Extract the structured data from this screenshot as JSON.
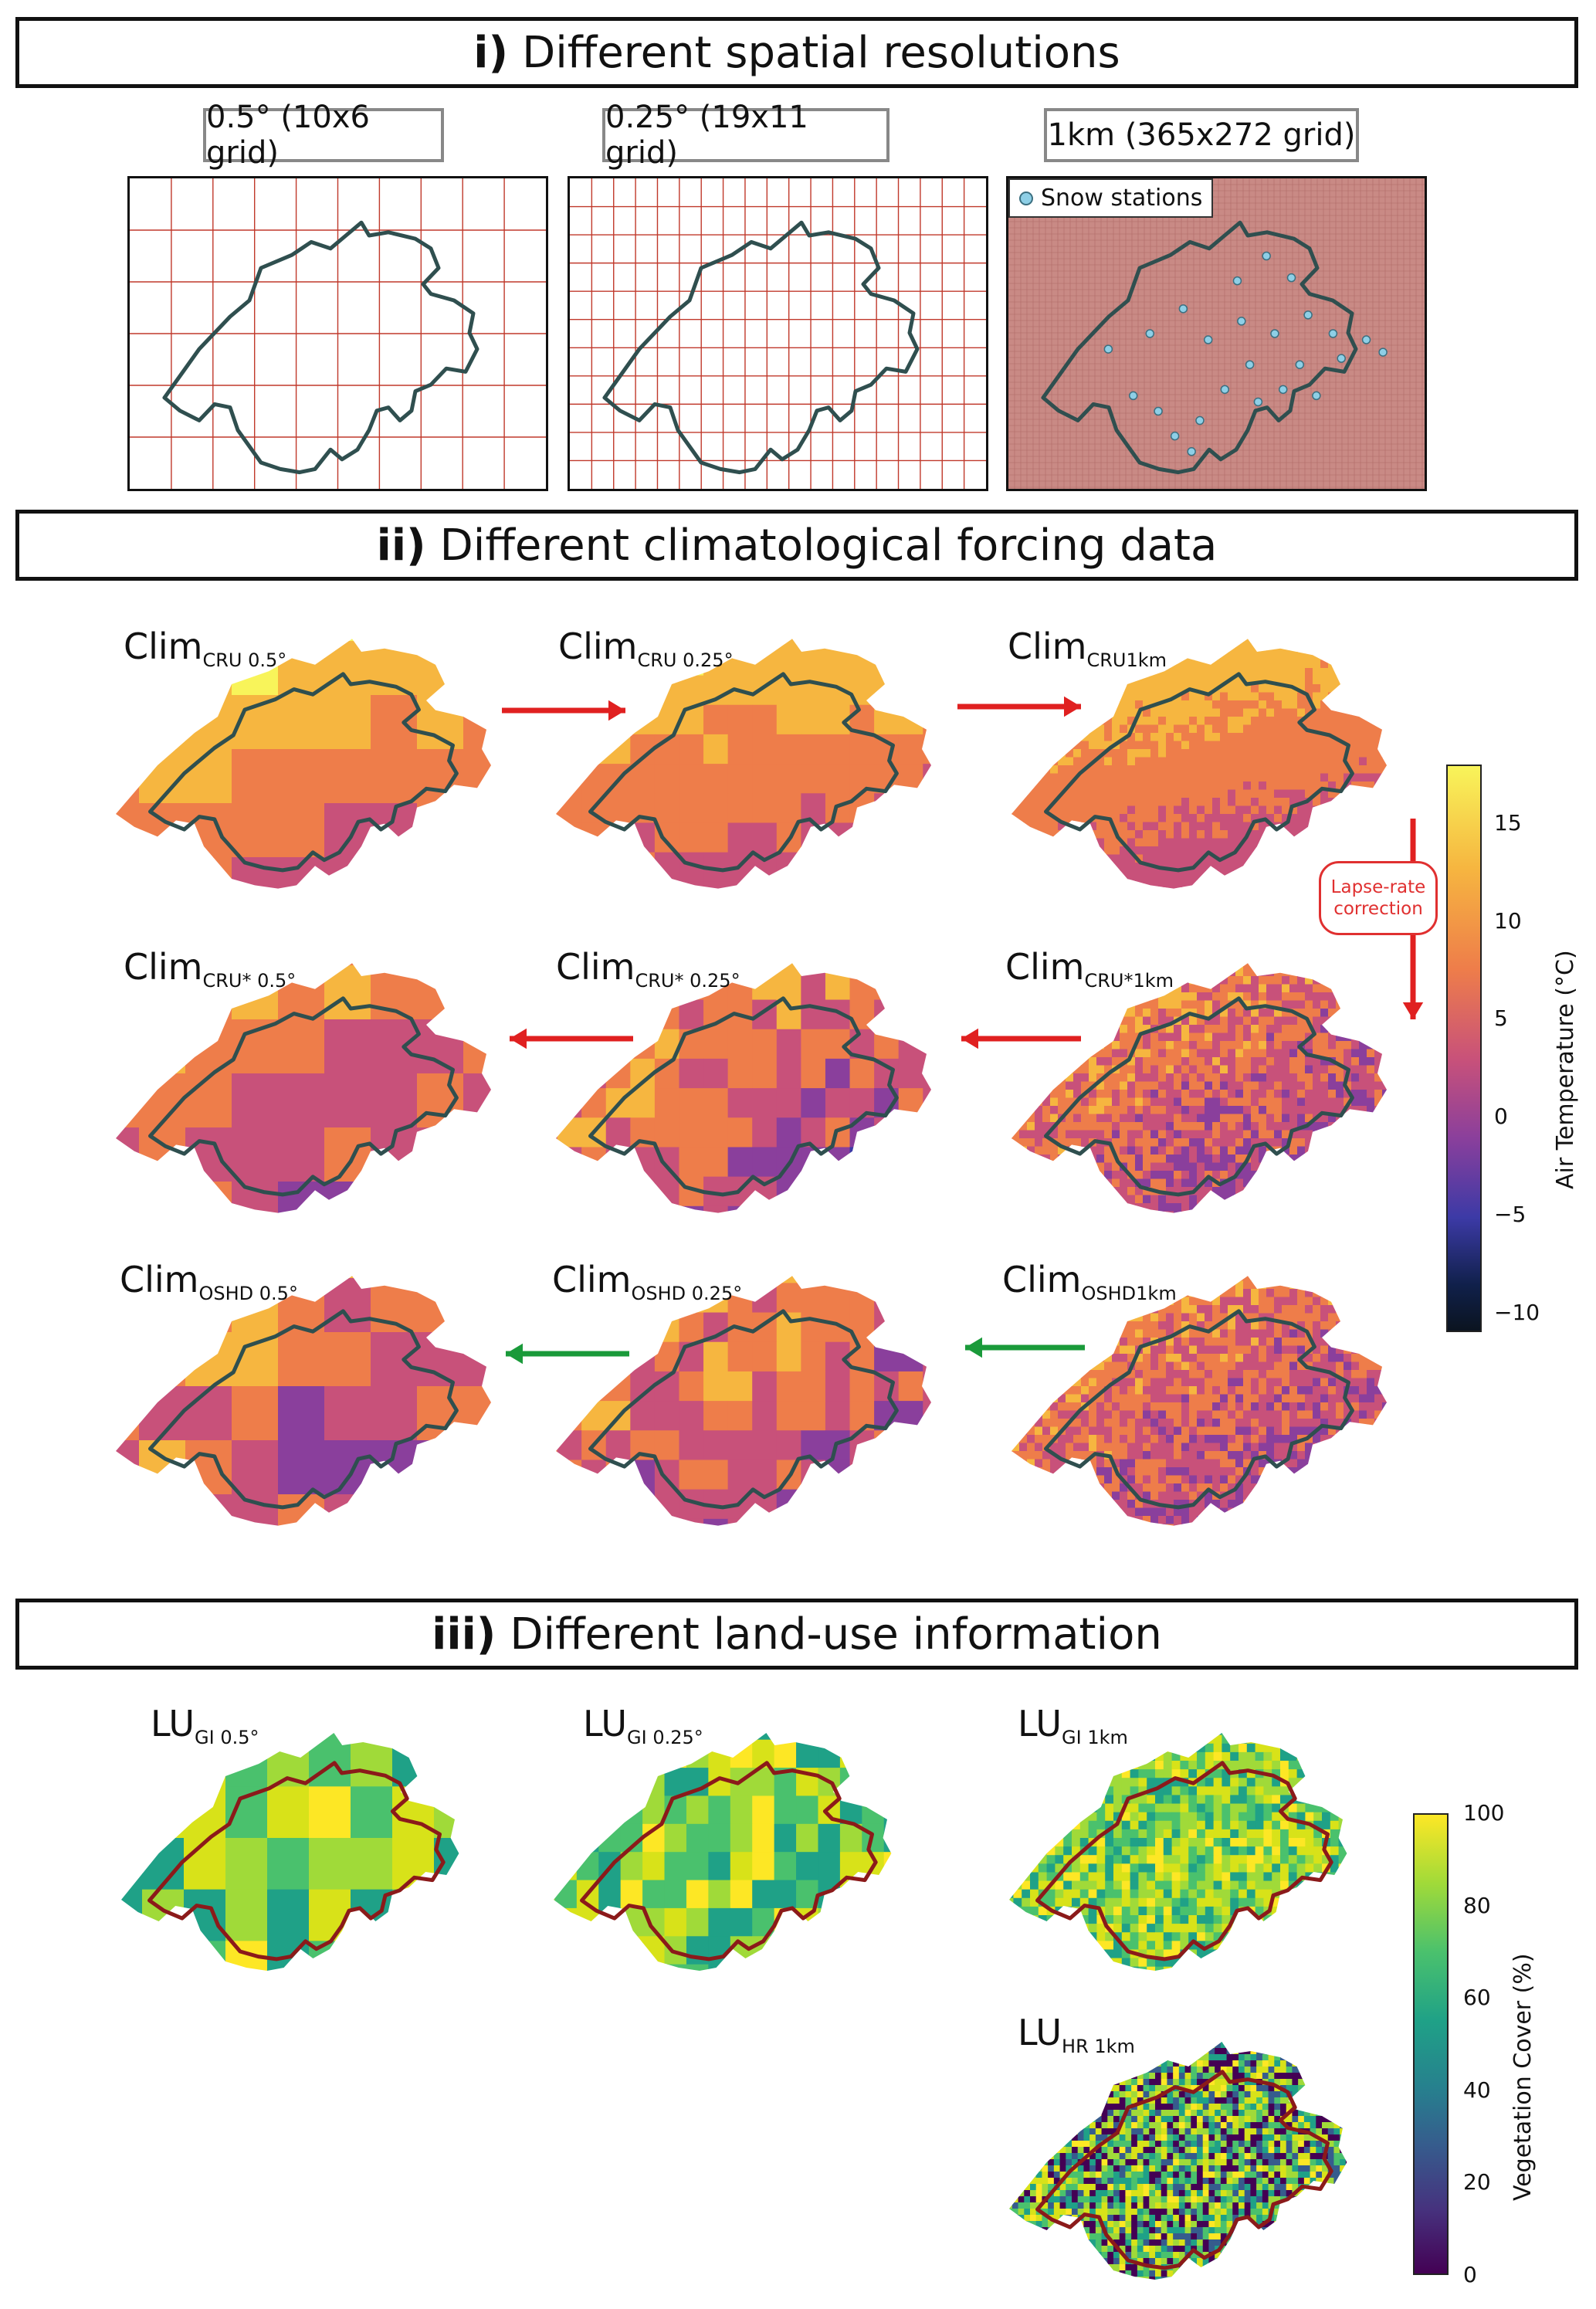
{
  "sections": {
    "s1": {
      "num": "i)",
      "title": "Different spatial resolutions"
    },
    "s2": {
      "num": "ii)",
      "title": "Different climatological forcing data"
    },
    "s3": {
      "num": "iii)",
      "title": "Different land-use information"
    }
  },
  "resolutions": [
    {
      "label": "0.5° (10x6 grid)",
      "cols": 10,
      "rows": 6
    },
    {
      "label": "0.25° (19x11 grid)",
      "cols": 19,
      "rows": 11
    },
    {
      "label": "1km (365x272 grid)",
      "cols": 365,
      "rows": 272
    }
  ],
  "stations_legend": "Snow stations",
  "climate_maps": [
    {
      "main": "Clim",
      "sub": "CRU 0.5°"
    },
    {
      "main": "Clim",
      "sub": "CRU 0.25°"
    },
    {
      "main": "Clim",
      "sub": "CRU1km"
    },
    {
      "main": "Clim",
      "sub": "CRU* 0.5°"
    },
    {
      "main": "Clim",
      "sub": "CRU* 0.25°"
    },
    {
      "main": "Clim",
      "sub": "CRU*1km"
    },
    {
      "main": "Clim",
      "sub": "OSHD 0.5°"
    },
    {
      "main": "Clim",
      "sub": "OSHD 0.25°"
    },
    {
      "main": "Clim",
      "sub": "OSHD1km"
    }
  ],
  "lapse_rate": {
    "line1": "Lapse-rate",
    "line2": "correction"
  },
  "temp_colorbar": {
    "label": "Air Temperature (°C)",
    "ticks": [
      "15",
      "10",
      "5",
      "0",
      "−5",
      "−10"
    ],
    "range": [
      -11,
      18
    ]
  },
  "landuse_maps": [
    {
      "main": "LU",
      "sub": "GI 0.5°"
    },
    {
      "main": "LU",
      "sub": "GI 0.25°"
    },
    {
      "main": "LU",
      "sub": "GI 1km"
    },
    {
      "main": "LU",
      "sub": "HR 1km"
    }
  ],
  "veg_colorbar": {
    "label": "Vegetation Cover (%)",
    "ticks": [
      "100",
      "80",
      "60",
      "40",
      "20",
      "0"
    ],
    "range": [
      0,
      100
    ]
  },
  "colors": {
    "grid": "#c0392b",
    "border": "#2f4f4f",
    "lu_border": "#8b1a1a",
    "arrow_red": "#e02020",
    "arrow_green": "#1a9a3a"
  }
}
